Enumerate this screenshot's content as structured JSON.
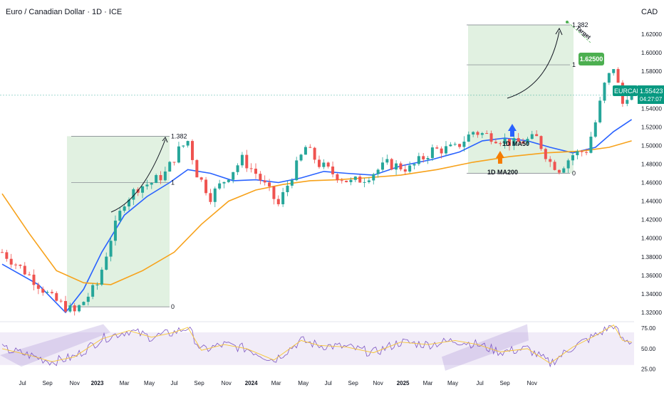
{
  "header": {
    "title": "Euro / Canadian Dollar · 1D · ICE"
  },
  "price_axis": {
    "currency": "CAD"
  },
  "price_badge": {
    "symbol": "EURCAD",
    "price": "1.55423",
    "countdown": "04:27:07"
  },
  "colors": {
    "up": "#26a69a",
    "down": "#ef5350",
    "ma50": "#2962ff",
    "ma200": "#f7a21b",
    "rsi": "#7e57c2",
    "rsi_ma": "#f7c531",
    "fib_zone": "#c8e6c9",
    "target_label": "#4caf50",
    "arrow_up_blue": "#2962ff",
    "arrow_up_orange": "#f57c00"
  },
  "chart_data": [
    {
      "type": "candlestick",
      "title": "Euro / Canadian Dollar · 1D · ICE",
      "ylim": [
        1.31,
        1.64
      ],
      "y_ticks": [
        "1.32000",
        "1.34000",
        "1.36000",
        "1.38000",
        "1.40000",
        "1.42000",
        "1.44000",
        "1.46000",
        "1.48000",
        "1.50000",
        "1.52000",
        "1.54000",
        "1.56000",
        "1.58000",
        "1.60000",
        "1.62000"
      ],
      "x_ticks": [
        "Jul",
        "Sep",
        "Nov",
        "2023",
        "Mar",
        "May",
        "Jul",
        "Sep",
        "Nov",
        "2024",
        "Mar",
        "May",
        "Jul",
        "Sep",
        "Nov",
        "2025",
        "Mar",
        "May",
        "Jul",
        "Sep",
        "Nov"
      ],
      "price_path": [
        [
          0,
          1.385
        ],
        [
          6,
          1.36
        ],
        [
          11,
          1.335
        ],
        [
          16,
          1.32
        ],
        [
          21,
          1.35
        ],
        [
          24,
          1.4
        ],
        [
          27,
          1.44
        ],
        [
          30,
          1.455
        ],
        [
          33,
          1.46
        ],
        [
          36,
          1.47
        ],
        [
          39,
          1.495
        ],
        [
          41,
          1.505
        ],
        [
          43,
          1.47
        ],
        [
          46,
          1.445
        ],
        [
          50,
          1.468
        ],
        [
          53,
          1.485
        ],
        [
          56,
          1.47
        ],
        [
          59,
          1.45
        ],
        [
          61,
          1.436
        ],
        [
          64,
          1.468
        ],
        [
          67,
          1.498
        ],
        [
          70,
          1.48
        ],
        [
          73,
          1.47
        ],
        [
          77,
          1.46
        ],
        [
          80,
          1.465
        ],
        [
          85,
          1.48
        ],
        [
          90,
          1.475
        ],
        [
          95,
          1.495
        ],
        [
          100,
          1.497
        ],
        [
          104,
          1.515
        ],
        [
          108,
          1.51
        ],
        [
          113,
          1.502
        ],
        [
          118,
          1.508
        ],
        [
          121,
          1.482
        ],
        [
          123,
          1.475
        ],
        [
          126,
          1.49
        ],
        [
          129,
          1.495
        ],
        [
          131,
          1.525
        ],
        [
          133,
          1.565
        ],
        [
          135,
          1.585
        ],
        [
          137,
          1.545
        ],
        [
          138,
          1.555
        ],
        [
          139,
          1.5542
        ]
      ],
      "series": [
        {
          "name": "1D MA50",
          "values": [
            [
              0,
              1.372
            ],
            [
              8,
              1.35
            ],
            [
              14,
              1.32
            ],
            [
              18,
              1.345
            ],
            [
              22,
              1.385
            ],
            [
              27,
              1.425
            ],
            [
              32,
              1.445
            ],
            [
              37,
              1.46
            ],
            [
              41,
              1.474
            ],
            [
              46,
              1.47
            ],
            [
              51,
              1.462
            ],
            [
              56,
              1.463
            ],
            [
              61,
              1.46
            ],
            [
              66,
              1.465
            ],
            [
              71,
              1.472
            ],
            [
              76,
              1.47
            ],
            [
              82,
              1.468
            ],
            [
              88,
              1.478
            ],
            [
              95,
              1.485
            ],
            [
              101,
              1.493
            ],
            [
              106,
              1.505
            ],
            [
              111,
              1.508
            ],
            [
              116,
              1.505
            ],
            [
              121,
              1.498
            ],
            [
              126,
              1.492
            ],
            [
              131,
              1.498
            ],
            [
              135,
              1.515
            ],
            [
              139,
              1.528
            ]
          ]
        },
        {
          "name": "1D MA200",
          "values": [
            [
              0,
              1.448
            ],
            [
              6,
              1.405
            ],
            [
              12,
              1.365
            ],
            [
              18,
              1.352
            ],
            [
              24,
              1.35
            ],
            [
              31,
              1.365
            ],
            [
              38,
              1.385
            ],
            [
              44,
              1.415
            ],
            [
              50,
              1.44
            ],
            [
              56,
              1.452
            ],
            [
              62,
              1.458
            ],
            [
              68,
              1.462
            ],
            [
              74,
              1.463
            ],
            [
              80,
              1.465
            ],
            [
              88,
              1.468
            ],
            [
              96,
              1.474
            ],
            [
              104,
              1.482
            ],
            [
              112,
              1.488
            ],
            [
              120,
              1.492
            ],
            [
              128,
              1.494
            ],
            [
              134,
              1.498
            ],
            [
              139,
              1.505
            ]
          ]
        }
      ],
      "fib_2023": {
        "levels": [
          "1.382",
          "1",
          "0"
        ]
      },
      "fib_2025": {
        "levels": [
          "1.382",
          "1",
          "0"
        ],
        "target": "1.62500",
        "target_note": "Target"
      },
      "annotations": [
        "1D MA50",
        "1D MA200"
      ]
    },
    {
      "type": "line",
      "title": "",
      "y_ticks": [
        "75.00",
        "50.00",
        "25.00"
      ],
      "ylim": [
        22,
        83
      ],
      "band": [
        30,
        70
      ],
      "rsi_path": [
        [
          0,
          50
        ],
        [
          6,
          42
        ],
        [
          11,
          34
        ],
        [
          16,
          40
        ],
        [
          22,
          62
        ],
        [
          28,
          72
        ],
        [
          33,
          64
        ],
        [
          38,
          70
        ],
        [
          41,
          76
        ],
        [
          44,
          48
        ],
        [
          49,
          55
        ],
        [
          54,
          50
        ],
        [
          60,
          36
        ],
        [
          66,
          60
        ],
        [
          70,
          54
        ],
        [
          76,
          52
        ],
        [
          82,
          45
        ],
        [
          88,
          58
        ],
        [
          94,
          55
        ],
        [
          100,
          60
        ],
        [
          105,
          55
        ],
        [
          110,
          46
        ],
        [
          116,
          50
        ],
        [
          121,
          32
        ],
        [
          126,
          52
        ],
        [
          131,
          66
        ],
        [
          135,
          79
        ],
        [
          137,
          60
        ],
        [
          139,
          58
        ]
      ]
    }
  ]
}
